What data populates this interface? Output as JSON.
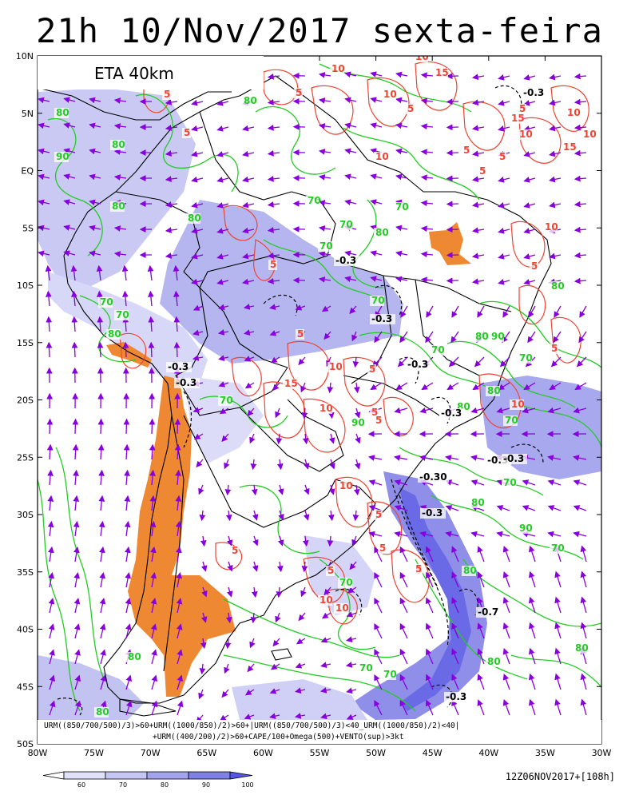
{
  "title": "21h 10/Nov/2017 sexta-feira",
  "model_label": "ETA 40km",
  "formula_line1": "URM((850/700/500)/3)>60+URM((1000/850)/2)>60+|URM((850/700/500)/3)<40_URM((1000/850)/2)<40|",
  "formula_line2": "+URM((400/200)/2)>60+CAPE/100+Omega(500)+VENTO(sup)>3kt",
  "run_info": "12Z06NOV2017+[108h]",
  "lat_labels": [
    "10N",
    "5N",
    "EQ",
    "5S",
    "10S",
    "15S",
    "20S",
    "25S",
    "30S",
    "35S",
    "40S",
    "45S",
    "50S"
  ],
  "lon_labels": [
    "80W",
    "75W",
    "70W",
    "65W",
    "60W",
    "55W",
    "50W",
    "45W",
    "40W",
    "35W",
    "30W"
  ],
  "legend": {
    "ticks": [
      "60",
      "70",
      "80",
      "90",
      "100"
    ],
    "colors": [
      "#ffffff",
      "#e1e1fb",
      "#c6c6f4",
      "#a3a3ee",
      "#7f7fe8",
      "#5555e6"
    ]
  },
  "colors": {
    "humidity_contour": "#22cc22",
    "cape_contour": "#ee4433",
    "omega_contour": "#000000",
    "wind_vector": "#8800dd",
    "dry_shading": "#ee8833",
    "coast": "#000000"
  },
  "contour_labels": {
    "humidity": [
      "80",
      "80",
      "90",
      "80",
      "80",
      "80",
      "70",
      "70",
      "70",
      "70",
      "70",
      "70",
      "80",
      "80",
      "70",
      "70",
      "80",
      "90",
      "80",
      "70",
      "80",
      "80",
      "70",
      "70",
      "70",
      "80",
      "90",
      "80",
      "70",
      "70",
      "70",
      "80",
      "80",
      "80",
      "80",
      "90",
      "70"
    ],
    "cape": [
      "10",
      "10",
      "15",
      "5",
      "5",
      "5",
      "10",
      "15",
      "10",
      "5",
      "5",
      "10",
      "5",
      "5",
      "15",
      "5",
      "10",
      "5",
      "10",
      "5",
      "10",
      "5",
      "5",
      "5",
      "10",
      "5",
      "5",
      "10",
      "5",
      "5",
      "5",
      "10",
      "5",
      "10",
      "5",
      "10",
      "5",
      "15",
      "10"
    ],
    "omega": [
      "-0.3",
      "-0.3",
      "-0.3",
      "-0.3",
      "-0.3",
      "-0.3",
      "-0.3",
      "-0.3",
      "-0.30",
      "-0.3",
      "-0.7",
      "-0.3",
      "-0.3"
    ]
  }
}
